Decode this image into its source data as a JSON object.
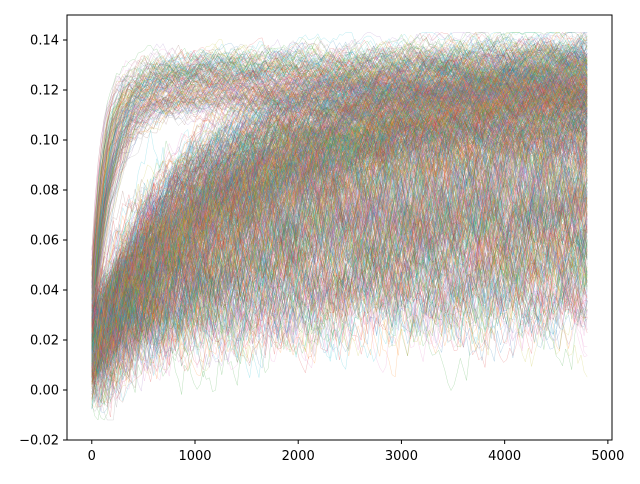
{
  "chart_data": {
    "type": "line",
    "title": "",
    "xlabel": "",
    "ylabel": "",
    "xlim": [
      -240,
      5040
    ],
    "ylim": [
      -0.02,
      0.15
    ],
    "x_ticks": [
      0,
      1000,
      2000,
      3000,
      4000,
      5000
    ],
    "x_tick_labels": [
      "0",
      "1000",
      "2000",
      "3000",
      "4000",
      "5000"
    ],
    "y_ticks": [
      -0.02,
      0.0,
      0.02,
      0.04,
      0.06,
      0.08,
      0.1,
      0.12,
      0.14
    ],
    "y_tick_labels": [
      "−0.02",
      "0.00",
      "0.02",
      "0.04",
      "0.06",
      "0.08",
      "0.10",
      "0.12",
      "0.14"
    ],
    "grid": false,
    "legend": "none",
    "x_start": 0,
    "x_end": 4800,
    "series_count": 1000,
    "series_groups": [
      {
        "share": 0.18,
        "start": [
          0.01,
          0.055
        ],
        "plateau": [
          0.112,
          0.132
        ],
        "rise_time": [
          80,
          250
        ],
        "noise": 0.004
      },
      {
        "share": 0.52,
        "start": [
          0.005,
          0.03
        ],
        "plateau": [
          0.1,
          0.13
        ],
        "rise_time": [
          700,
          1800
        ],
        "noise": 0.005
      },
      {
        "share": 0.3,
        "start": [
          0.0,
          0.03
        ],
        "plateau": [
          0.03,
          0.095
        ],
        "rise_time": [
          300,
          1500
        ],
        "noise": 0.012
      }
    ],
    "colors": [
      "#1f77b4",
      "#ff7f0e",
      "#2ca02c",
      "#d62728",
      "#9467bd",
      "#8c564b",
      "#e377c2",
      "#7f7f7f",
      "#bcbd22",
      "#17becf"
    ]
  }
}
